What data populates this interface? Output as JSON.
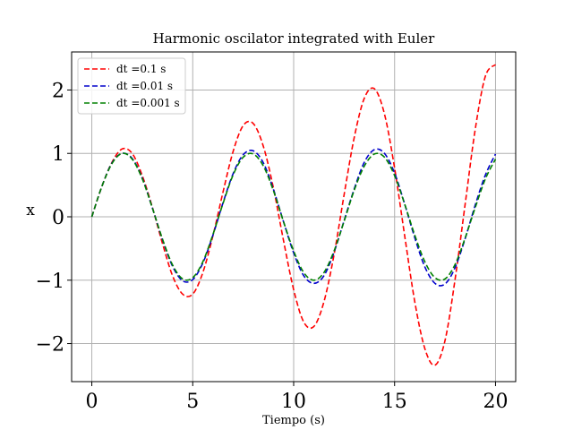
{
  "chart_data": {
    "type": "line",
    "title": "Harmonic oscilator integrated with Euler",
    "xlabel": "Tiempo (s)",
    "ylabel": "x",
    "xlim": [
      -1,
      21
    ],
    "ylim": [
      -2.6,
      2.6
    ],
    "xticks": [
      0,
      5,
      10,
      15,
      20
    ],
    "xtick_labels": [
      "0",
      "5",
      "10",
      "15",
      "20"
    ],
    "yticks": [
      -2,
      -1,
      0,
      1,
      2
    ],
    "ytick_labels": [
      "−2",
      "−1",
      "0",
      "1",
      "2"
    ],
    "grid": true,
    "legend_position": "top-left",
    "series": [
      {
        "name": "dt =0.1 s",
        "color": "#ff0000",
        "dash": "dashed",
        "x": [
          0,
          0.5,
          1,
          1.5,
          2,
          2.5,
          3,
          3.5,
          4,
          4.5,
          5,
          5.5,
          6,
          6.5,
          7,
          7.5,
          8,
          8.5,
          9,
          9.5,
          10,
          10.5,
          11,
          11.5,
          12,
          12.5,
          13,
          13.5,
          14,
          14.5,
          15,
          15.5,
          16,
          16.5,
          17,
          17.5,
          18,
          18.5,
          19,
          19.5,
          20
        ],
        "values": [
          0,
          0.48,
          0.86,
          1.07,
          1.0,
          0.65,
          0.15,
          -0.42,
          -0.93,
          -1.22,
          -1.22,
          -0.88,
          -0.3,
          0.39,
          1.03,
          1.44,
          1.47,
          1.11,
          0.45,
          -0.38,
          -1.15,
          -1.66,
          -1.73,
          -1.34,
          -0.6,
          0.35,
          1.25,
          1.87,
          2.02,
          1.62,
          0.77,
          -0.3,
          -1.34,
          -2.08,
          -2.34,
          -1.95,
          -0.98,
          0.21,
          1.39,
          2.22,
          2.4
        ]
      },
      {
        "name": "dt =0.01 s",
        "color": "#0000cc",
        "dash": "dashed",
        "x": [
          0,
          0.5,
          1,
          1.5,
          2,
          2.5,
          3,
          3.5,
          4,
          4.5,
          5,
          5.5,
          6,
          6.5,
          7,
          7.5,
          8,
          8.5,
          9,
          9.5,
          10,
          10.5,
          11,
          11.5,
          12,
          12.5,
          13,
          13.5,
          14,
          14.5,
          15,
          15.5,
          16,
          16.5,
          17,
          17.5,
          18,
          18.5,
          19,
          19.5,
          20
        ],
        "values": [
          0,
          0.48,
          0.85,
          1.0,
          0.92,
          0.61,
          0.14,
          -0.36,
          -0.78,
          -1.01,
          -0.99,
          -0.73,
          -0.29,
          0.22,
          0.68,
          0.98,
          1.04,
          0.85,
          0.43,
          -0.08,
          -0.57,
          -0.93,
          -1.05,
          -0.93,
          -0.56,
          -0.06,
          0.44,
          0.86,
          1.06,
          1.0,
          0.69,
          0.2,
          -0.33,
          -0.79,
          -1.05,
          -1.06,
          -0.8,
          -0.34,
          0.19,
          0.66,
          0.99
        ]
      },
      {
        "name": "dt =0.001 s",
        "color": "#008000",
        "dash": "dashed",
        "x": [
          0,
          0.5,
          1,
          1.5,
          2,
          2.5,
          3,
          3.5,
          4,
          4.5,
          5,
          5.5,
          6,
          6.5,
          7,
          7.5,
          8,
          8.5,
          9,
          9.5,
          10,
          10.5,
          11,
          11.5,
          12,
          12.5,
          13,
          13.5,
          14,
          14.5,
          15,
          15.5,
          16,
          16.5,
          17,
          17.5,
          18,
          18.5,
          19,
          19.5,
          20
        ],
        "values": [
          0,
          0.48,
          0.84,
          1.0,
          0.91,
          0.6,
          0.14,
          -0.35,
          -0.76,
          -0.98,
          -0.96,
          -0.71,
          -0.28,
          0.21,
          0.66,
          0.94,
          0.99,
          0.8,
          0.41,
          -0.08,
          -0.54,
          -0.88,
          -1.0,
          -0.88,
          -0.54,
          -0.07,
          0.42,
          0.8,
          0.99,
          0.94,
          0.65,
          0.2,
          -0.29,
          -0.71,
          -0.96,
          -0.98,
          -0.75,
          -0.33,
          0.15,
          0.6,
          0.91
        ]
      }
    ]
  }
}
